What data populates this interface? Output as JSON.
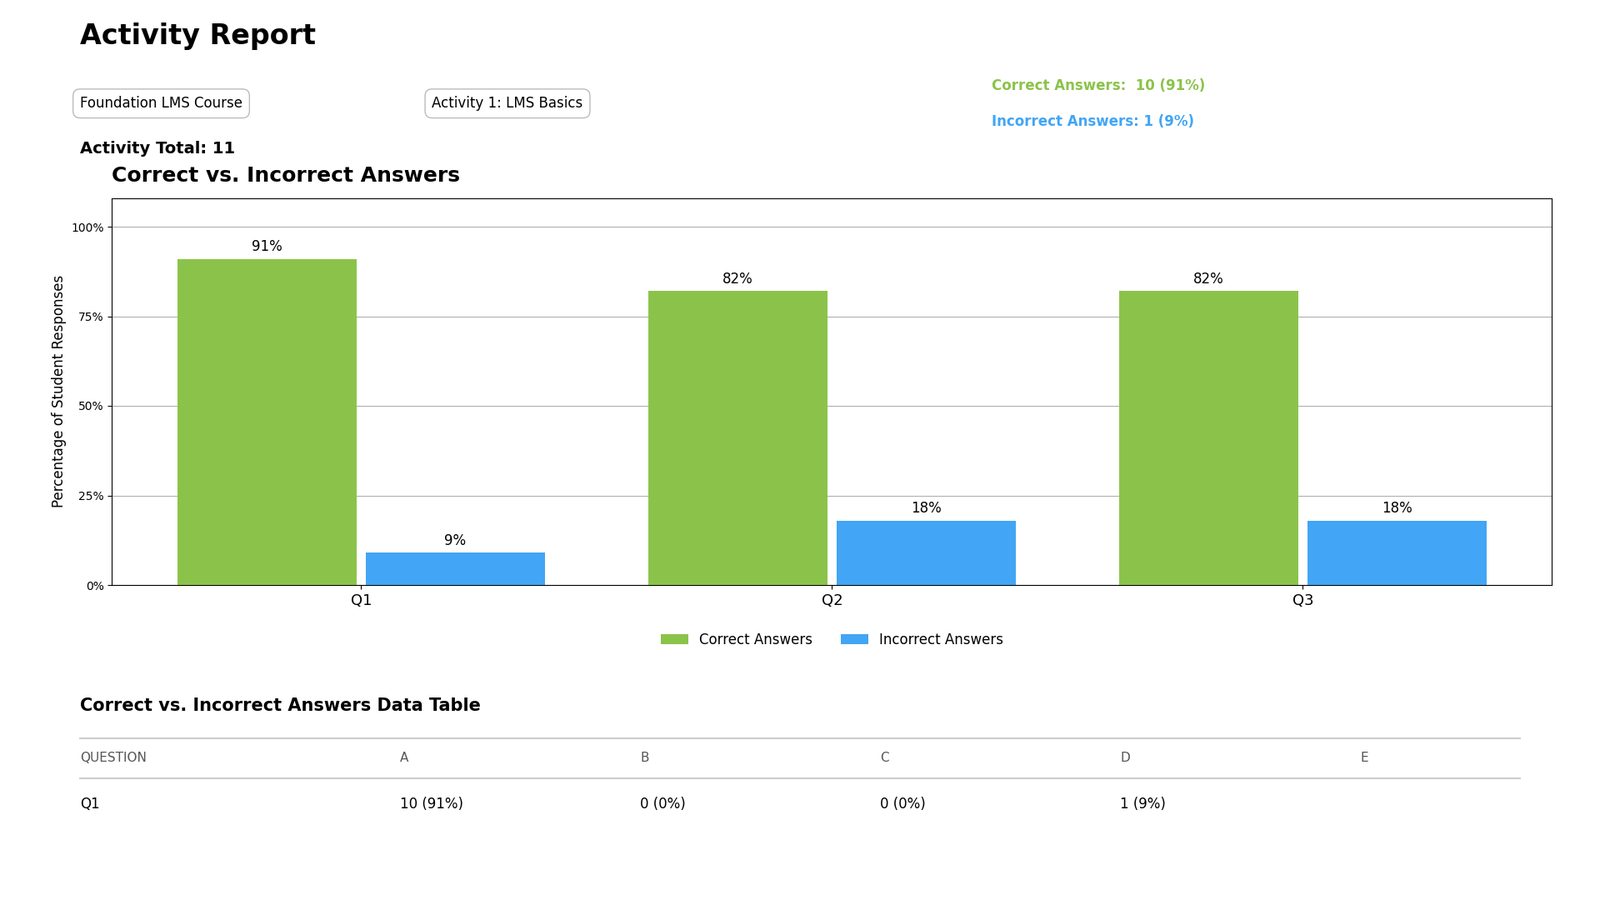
{
  "chart_data": {
    "type": "bar",
    "title": "Correct vs. Incorrect Answers",
    "ylabel": "Percentage of Student Responses",
    "categories": [
      "Q1",
      "Q2",
      "Q3"
    ],
    "series": [
      {
        "name": "Correct Answers",
        "color": "#8BC34A",
        "values": [
          91,
          82,
          82
        ],
        "value_labels": [
          "91%",
          "82%",
          "82%"
        ]
      },
      {
        "name": "Incorrect Answers",
        "color": "#42A5F5",
        "values": [
          9,
          18,
          18
        ],
        "value_labels": [
          "9%",
          "18%",
          "18%"
        ]
      }
    ],
    "ylim": [
      0,
      108
    ],
    "yticks": [
      {
        "value": 0,
        "label": "0%"
      },
      {
        "value": 25,
        "label": "25%"
      },
      {
        "value": 50,
        "label": "50%"
      },
      {
        "value": 75,
        "label": "75%"
      },
      {
        "value": 100,
        "label": "100%"
      }
    ],
    "grid": true,
    "legend": "upper center",
    "data_labels": true,
    "annotations": [
      "Activity Report",
      "Foundation LMS Course",
      "Activity 1: LMS Basics",
      "Activity Total: 11",
      "Correct Answers:  10 (91%)",
      "Incorrect Answers: 1 (9%)"
    ],
    "table": {
      "title": "Correct vs. Incorrect Answers Data Table",
      "columns": [
        "QUESTION",
        "A",
        "B",
        "C",
        "D",
        "E"
      ],
      "rows": [
        [
          "Q1",
          "10 (91%)",
          "0 (0%)",
          "0 (0%)",
          "1 (9%)",
          null
        ]
      ]
    }
  }
}
